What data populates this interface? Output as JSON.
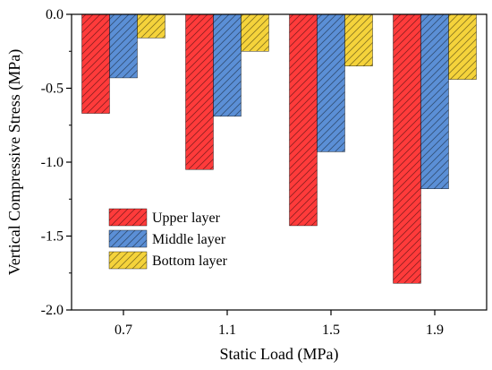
{
  "chart_data": {
    "type": "bar",
    "categories": [
      "0.7",
      "1.1",
      "1.5",
      "1.9"
    ],
    "series": [
      {
        "name": "Upper layer",
        "values": [
          -0.67,
          -1.05,
          -1.43,
          -1.82
        ],
        "color": "#ff3b3b"
      },
      {
        "name": "Middle layer",
        "values": [
          -0.43,
          -0.69,
          -0.93,
          -1.18
        ],
        "color": "#5b8fd6"
      },
      {
        "name": "Bottom layer",
        "values": [
          -0.16,
          -0.25,
          -0.35,
          -0.44
        ],
        "color": "#f5d33b"
      }
    ],
    "xlabel": "Static Load (MPa)",
    "ylabel": "Vertical Compressive Stress (MPa)",
    "ylim": [
      -2.0,
      0.0
    ],
    "yticks": [
      "0.0",
      "-0.5",
      "-1.0",
      "-1.5",
      "-2.0"
    ],
    "ytick_values": [
      0.0,
      -0.5,
      -1.0,
      -1.5,
      -2.0
    ],
    "bar_pattern": "diagonal-hatch",
    "legend_position": "lower-left",
    "grid": false
  }
}
